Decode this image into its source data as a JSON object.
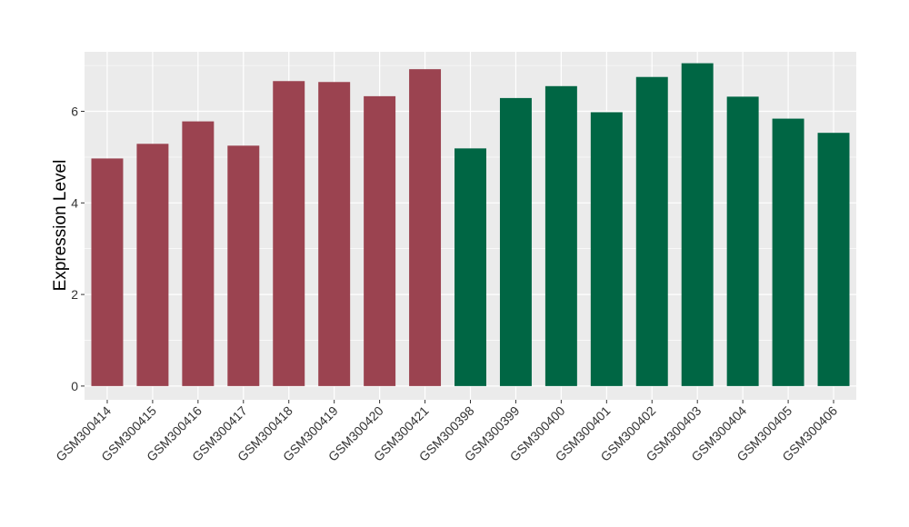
{
  "chart_data": {
    "type": "bar",
    "title": "",
    "xlabel": "",
    "ylabel": "Expression Level",
    "ylim": [
      -0.3,
      7.3
    ],
    "yticks": [
      0,
      2,
      4,
      6
    ],
    "yticklabels": [
      "0",
      "2",
      "4",
      "6"
    ],
    "grid": true,
    "legend": "none",
    "categories": [
      "GSM300414",
      "GSM300415",
      "GSM300416",
      "GSM300417",
      "GSM300418",
      "GSM300419",
      "GSM300420",
      "GSM300421",
      "GSM300398",
      "GSM300399",
      "GSM300400",
      "GSM300401",
      "GSM300402",
      "GSM300403",
      "GSM300404",
      "GSM300405",
      "GSM300406"
    ],
    "values": [
      4.97,
      5.29,
      5.78,
      5.25,
      6.66,
      6.64,
      6.33,
      6.92,
      5.19,
      6.29,
      6.55,
      5.98,
      6.75,
      7.05,
      6.32,
      5.84,
      5.53
    ],
    "group_colors": [
      "#9b4350",
      "#9b4350",
      "#9b4350",
      "#9b4350",
      "#9b4350",
      "#9b4350",
      "#9b4350",
      "#9b4350",
      "#006644",
      "#006644",
      "#006644",
      "#006644",
      "#006644",
      "#006644",
      "#006644",
      "#006644",
      "#006644"
    ],
    "panel_color": "#ebebeb",
    "grid_color": "#ffffff"
  }
}
